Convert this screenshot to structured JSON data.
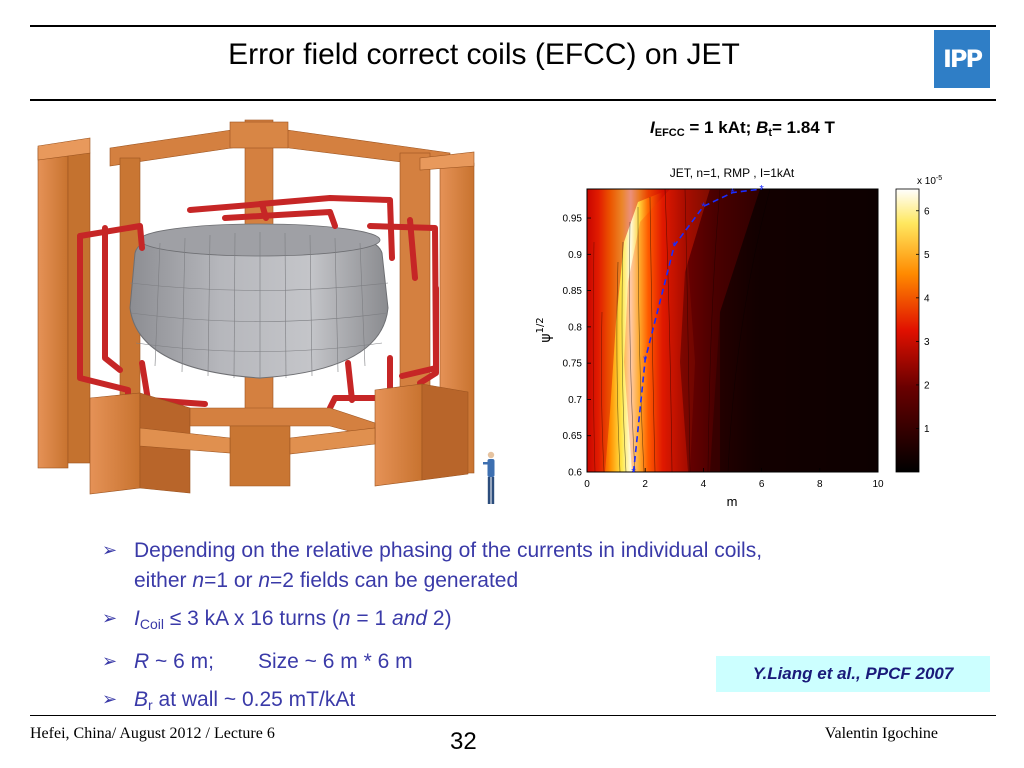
{
  "slide": {
    "title": "Error field correct coils (EFCC) on JET",
    "logo_text": "IPP",
    "colors": {
      "accent_text": "#3a3aa8",
      "logo": "#2f7ec6",
      "reference_bg": "#ccffff",
      "coil_frame": "#d9813f",
      "coils": "#c82424",
      "vessel": "#a8a9ad"
    }
  },
  "param_line": {
    "i_sym": "I",
    "i_sub": "EFCC",
    "i_rest": " = 1 kAt; ",
    "b_sym": "B",
    "b_sub": "t",
    "b_rest": "= 1.84 T"
  },
  "chart_data": {
    "type": "heatmap",
    "title": "JET, n=1, RMP , I=1kAt",
    "xlabel": "m",
    "ylabel": "ψ",
    "ylabel_sup": "1/2",
    "xlim": [
      0,
      10
    ],
    "ylim": [
      0.6,
      0.99
    ],
    "x_ticks": [
      "0",
      "2",
      "4",
      "6",
      "8",
      "10"
    ],
    "y_ticks": [
      "0.6",
      "0.65",
      "0.7",
      "0.75",
      "0.8",
      "0.85",
      "0.9",
      "0.95"
    ],
    "colorbar": {
      "multiplier": "x 10",
      "exponent": "-5",
      "ticks": [
        "1",
        "2",
        "3",
        "4",
        "5",
        "6"
      ],
      "range": [
        0,
        6.5
      ]
    },
    "resonance_curve": {
      "x": [
        1.6,
        2.0,
        3.0,
        4.0,
        5.0,
        6.0
      ],
      "y": [
        0.6,
        0.755,
        0.912,
        0.966,
        0.985,
        0.99
      ]
    },
    "grid": false,
    "legend": "none"
  },
  "bullets": {
    "b1_line1": "Depending on the relative phasing of the currents in individual coils,",
    "b1_pre": "either ",
    "b1_n1": "n",
    "b1_mid": "=1 or ",
    "b1_n2": "n",
    "b1_post": "=2 fields can be generated",
    "b2_sym": "I",
    "b2_sub": "Coil",
    "b2_mid": " ≤ 3 kA x 16 turns (",
    "b2_n": "n",
    "b2_eq": " = 1 ",
    "b2_and": "and",
    "b2_end": " 2)",
    "b3_r": "R",
    "b3_a": " ~ 6 m;",
    "b3_b": "Size ~ 6 m * 6 m",
    "b4_sym": "B",
    "b4_sub": "r",
    "b4_rest": " at wall ~ 0.25 mT/kAt"
  },
  "reference": "Y.Liang et al., PPCF 2007",
  "footer": {
    "left": "Hefei, China/ August 2012 / Lecture 6",
    "page": "32",
    "right": "Valentin Igochine"
  }
}
